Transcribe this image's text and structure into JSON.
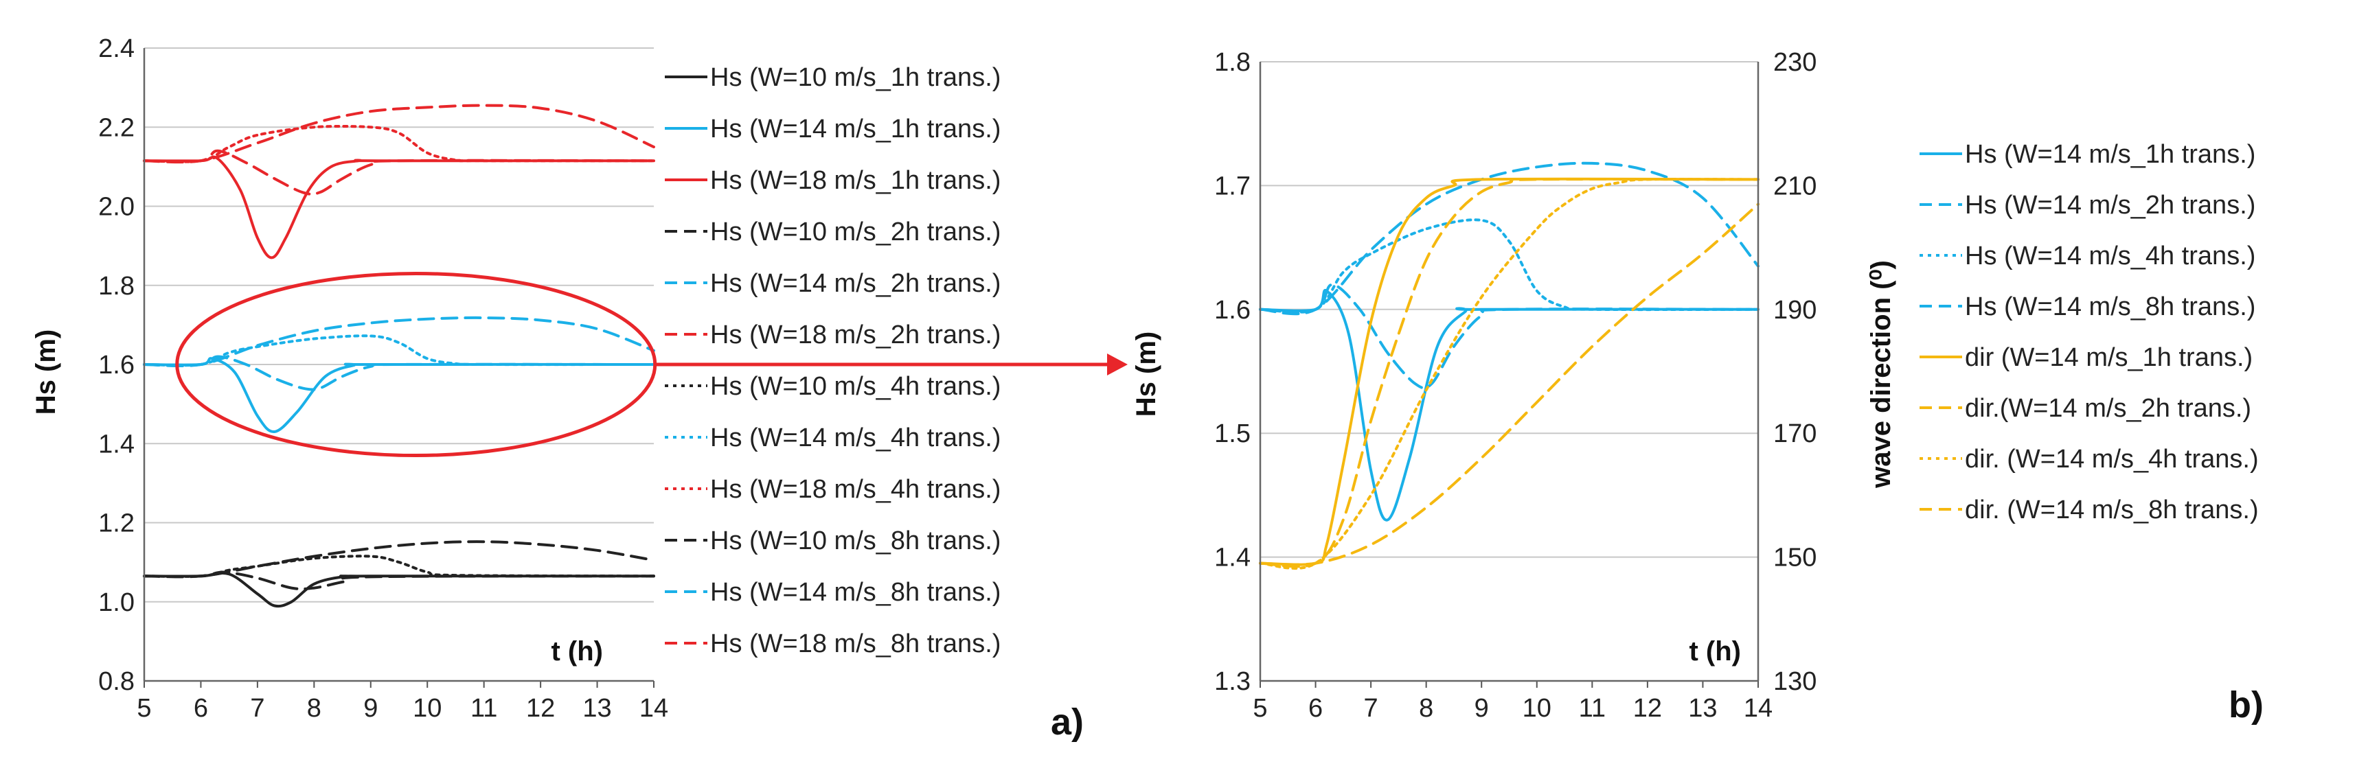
{
  "colors": {
    "black": "#222222",
    "cyan": "#1ab0e8",
    "red": "#e8262a",
    "gold": "#f5b80f",
    "grid": "#c8c8c8"
  },
  "chart_data": [
    {
      "type": "line",
      "panel_label": "a)",
      "xlabel": "t (h)",
      "ylabel": "Hs (m)",
      "xlim": [
        5,
        14
      ],
      "ylim": [
        0.8,
        2.4
      ],
      "x_ticks": [
        "5",
        "6",
        "7",
        "8",
        "9",
        "10",
        "11",
        "12",
        "13",
        "14"
      ],
      "y_ticks": [
        "0.8",
        "1.0",
        "1.2",
        "1.4",
        "1.6",
        "1.8",
        "2.0",
        "2.2",
        "2.4"
      ],
      "annotation": "highlight ellipse around W=14 m/s curves with arrow to panel b)",
      "series": [
        {
          "name": "Hs (W=10 m/s_1h trans.)",
          "color": "black",
          "dash": "solid",
          "x": [
            5,
            6,
            6.5,
            7,
            7.3,
            7.6,
            8,
            8.5,
            9,
            14
          ],
          "y": [
            1.065,
            1.065,
            1.07,
            1.02,
            0.99,
            1.0,
            1.045,
            1.063,
            1.065,
            1.065
          ]
        },
        {
          "name": "Hs (W=14 m/s_1h trans.)",
          "color": "cyan",
          "dash": "solid",
          "x": [
            5,
            6,
            6.2,
            6.6,
            7,
            7.3,
            7.7,
            8.2,
            8.7,
            9,
            14
          ],
          "y": [
            1.6,
            1.6,
            1.615,
            1.58,
            1.47,
            1.43,
            1.48,
            1.57,
            1.598,
            1.6,
            1.6
          ]
        },
        {
          "name": "Hs (W=18 m/s_1h trans.)",
          "color": "red",
          "dash": "solid",
          "x": [
            5,
            6,
            6.3,
            6.7,
            7,
            7.25,
            7.5,
            7.9,
            8.3,
            8.8,
            9.2,
            14
          ],
          "y": [
            2.115,
            2.115,
            2.12,
            2.04,
            1.92,
            1.87,
            1.92,
            2.04,
            2.1,
            2.115,
            2.115,
            2.115
          ]
        },
        {
          "name": "Hs (W=10 m/s_2h trans.)",
          "color": "black",
          "dash": "dash",
          "x": [
            5,
            6,
            6.4,
            7,
            7.6,
            8,
            8.5,
            9,
            14
          ],
          "y": [
            1.065,
            1.065,
            1.075,
            1.06,
            1.035,
            1.035,
            1.05,
            1.063,
            1.065
          ]
        },
        {
          "name": "Hs (W=14 m/s_2h trans.)",
          "color": "cyan",
          "dash": "dash",
          "x": [
            5,
            6,
            6.3,
            6.8,
            7.3,
            7.8,
            8.1,
            8.5,
            9,
            9.5,
            14
          ],
          "y": [
            1.6,
            1.6,
            1.62,
            1.6,
            1.565,
            1.54,
            1.54,
            1.57,
            1.595,
            1.6,
            1.6
          ]
        },
        {
          "name": "Hs (W=18 m/s_2h trans.)",
          "color": "red",
          "dash": "dash",
          "x": [
            5,
            6,
            6.3,
            6.8,
            7.3,
            7.8,
            8.1,
            8.5,
            9,
            9.5,
            14
          ],
          "y": [
            2.115,
            2.115,
            2.14,
            2.11,
            2.07,
            2.035,
            2.035,
            2.07,
            2.105,
            2.115,
            2.115
          ]
        },
        {
          "name": "Hs (W=10 m/s_4h trans.)",
          "color": "black",
          "dash": "dot",
          "x": [
            5,
            6,
            6.5,
            7,
            8,
            9,
            9.5,
            10,
            10.5,
            14
          ],
          "y": [
            1.065,
            1.065,
            1.08,
            1.09,
            1.11,
            1.115,
            1.1,
            1.075,
            1.067,
            1.065
          ]
        },
        {
          "name": "Hs (W=14 m/s_4h trans.)",
          "color": "cyan",
          "dash": "dot",
          "x": [
            5,
            6,
            6.5,
            7,
            8,
            9,
            9.5,
            10,
            10.5,
            11,
            14
          ],
          "y": [
            1.6,
            1.6,
            1.63,
            1.645,
            1.665,
            1.672,
            1.655,
            1.615,
            1.602,
            1.6,
            1.6
          ]
        },
        {
          "name": "Hs (W=18 m/s_4h trans.)",
          "color": "red",
          "dash": "dot",
          "x": [
            5,
            6,
            6.5,
            7,
            8,
            9,
            9.5,
            10,
            10.5,
            11,
            14
          ],
          "y": [
            2.115,
            2.115,
            2.15,
            2.18,
            2.2,
            2.2,
            2.185,
            2.135,
            2.117,
            2.115,
            2.115
          ]
        },
        {
          "name": "Hs (W=10 m/s_8h trans.)",
          "color": "black",
          "dash": "dash",
          "x": [
            5,
            6,
            7,
            8,
            9,
            10,
            11,
            12,
            13,
            14
          ],
          "y": [
            1.065,
            1.065,
            1.09,
            1.115,
            1.135,
            1.148,
            1.152,
            1.145,
            1.13,
            1.105
          ]
        },
        {
          "name": "Hs (W=14 m/s_8h trans.)",
          "color": "cyan",
          "dash": "dash",
          "x": [
            5,
            6,
            7,
            8,
            9,
            10,
            11,
            12,
            13,
            14
          ],
          "y": [
            1.6,
            1.6,
            1.648,
            1.685,
            1.705,
            1.715,
            1.718,
            1.712,
            1.69,
            1.635
          ]
        },
        {
          "name": "Hs (W=18 m/s_8h trans.)",
          "color": "red",
          "dash": "dash",
          "x": [
            5,
            6,
            7,
            8,
            9,
            10,
            11,
            12,
            13,
            14
          ],
          "y": [
            2.115,
            2.115,
            2.16,
            2.21,
            2.24,
            2.25,
            2.255,
            2.248,
            2.215,
            2.15
          ]
        }
      ]
    },
    {
      "type": "line",
      "panel_label": "b)",
      "xlabel": "t (h)",
      "ylabel": "Hs (m)",
      "y2label": "wave direction (⁰)",
      "xlim": [
        5,
        14
      ],
      "ylim": [
        1.3,
        1.8
      ],
      "y2lim": [
        130,
        230
      ],
      "x_ticks": [
        "5",
        "6",
        "7",
        "8",
        "9",
        "10",
        "11",
        "12",
        "13",
        "14"
      ],
      "y_ticks": [
        "1.3",
        "1.4",
        "1.5",
        "1.6",
        "1.7",
        "1.8"
      ],
      "y2_ticks": [
        "130",
        "150",
        "170",
        "190",
        "210",
        "230"
      ],
      "series": [
        {
          "name": "Hs (W=14 m/s_1h trans.)",
          "color": "cyan",
          "dash": "solid",
          "axis": "left",
          "x": [
            5,
            6,
            6.2,
            6.6,
            7,
            7.3,
            7.7,
            8.2,
            8.7,
            9,
            14
          ],
          "y": [
            1.6,
            1.6,
            1.615,
            1.58,
            1.47,
            1.43,
            1.48,
            1.57,
            1.598,
            1.6,
            1.6
          ]
        },
        {
          "name": "Hs (W=14 m/s_2h trans.)",
          "color": "cyan",
          "dash": "dash",
          "axis": "left",
          "x": [
            5,
            6,
            6.3,
            6.8,
            7.3,
            7.8,
            8.1,
            8.5,
            9,
            9.5,
            14
          ],
          "y": [
            1.6,
            1.6,
            1.62,
            1.6,
            1.565,
            1.54,
            1.54,
            1.57,
            1.595,
            1.6,
            1.6
          ]
        },
        {
          "name": "Hs (W=14 m/s_4h trans.)",
          "color": "cyan",
          "dash": "dot",
          "axis": "left",
          "x": [
            5,
            6,
            6.5,
            7,
            8,
            9,
            9.5,
            10,
            10.5,
            11,
            14
          ],
          "y": [
            1.6,
            1.6,
            1.63,
            1.645,
            1.665,
            1.672,
            1.655,
            1.615,
            1.602,
            1.6,
            1.6
          ]
        },
        {
          "name": "Hs (W=14 m/s_8h trans.)",
          "color": "cyan",
          "dash": "dash",
          "axis": "left",
          "x": [
            5,
            6,
            7,
            8,
            9,
            10,
            11,
            12,
            13,
            14
          ],
          "y": [
            1.6,
            1.6,
            1.648,
            1.685,
            1.705,
            1.715,
            1.718,
            1.712,
            1.69,
            1.635
          ]
        },
        {
          "name": "dir (W=14 m/s_1h trans.)",
          "color": "gold",
          "dash": "solid",
          "axis": "right",
          "x": [
            5,
            6,
            6.2,
            6.5,
            7,
            7.5,
            8,
            8.5,
            9,
            14
          ],
          "y": [
            149,
            149,
            152,
            165,
            188,
            202,
            208,
            210,
            211,
            211
          ]
        },
        {
          "name": "dir.(W=14 m/s_2h trans.)",
          "color": "gold",
          "dash": "dash",
          "axis": "right",
          "x": [
            5,
            6,
            6.5,
            7,
            7.5,
            8,
            8.5,
            9,
            9.5,
            10,
            14
          ],
          "y": [
            149,
            149,
            156,
            172,
            186,
            198,
            205,
            209,
            210.5,
            211,
            211
          ]
        },
        {
          "name": "dir. (W=14 m/s_4h trans.)",
          "color": "gold",
          "dash": "dot",
          "axis": "right",
          "x": [
            5,
            6,
            7,
            8,
            9,
            10,
            10.5,
            11,
            11.5,
            12,
            14
          ],
          "y": [
            149,
            149,
            160,
            177,
            192,
            203,
            207,
            209.5,
            210.5,
            211,
            211
          ]
        },
        {
          "name": "dir. (W=14 m/s_8h trans.)",
          "color": "gold",
          "dash": "dash",
          "axis": "right",
          "x": [
            5,
            6,
            7,
            8,
            9,
            10,
            11,
            12,
            13,
            14
          ],
          "y": [
            149,
            149,
            152,
            158,
            166,
            175,
            184,
            192,
            199,
            207
          ]
        }
      ]
    }
  ]
}
